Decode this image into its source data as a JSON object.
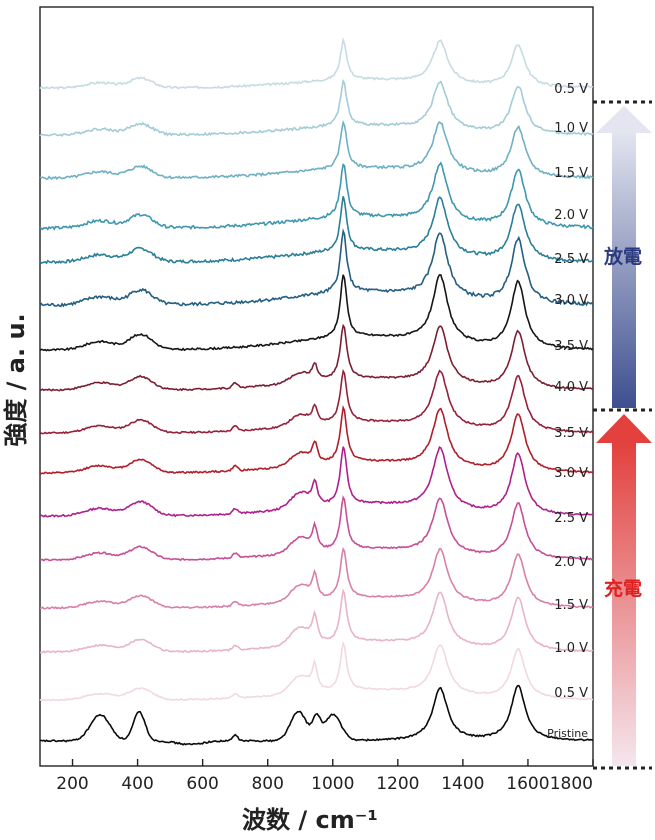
{
  "chart_data": {
    "type": "line",
    "xlabel": "波数 / cm⁻¹",
    "ylabel": "強度 / a. u.",
    "xlim": [
      100,
      1800
    ],
    "xticks": [
      200,
      400,
      600,
      800,
      1000,
      1200,
      1400,
      1600,
      1800
    ],
    "grid": false,
    "offset_stacked": true,
    "peaks_cm-1": [
      1030,
      1330,
      1570
    ],
    "series": [
      {
        "name": "0.5 V",
        "color": "#c6dce2"
      },
      {
        "name": "1.0 V",
        "color": "#a4ccd6"
      },
      {
        "name": "1.5 V",
        "color": "#6fb0c2"
      },
      {
        "name": "2.0 V",
        "color": "#3f97ae"
      },
      {
        "name": "2.5 V",
        "color": "#2a7f98"
      },
      {
        "name": "3.0 V",
        "color": "#245e82"
      },
      {
        "name": "3.5 V",
        "color": "#151515"
      },
      {
        "name": "4.0 V",
        "color": "#7a1f33"
      },
      {
        "name": "3.5 V",
        "color": "#96203a"
      },
      {
        "name": "3.0 V",
        "color": "#b01e2a"
      },
      {
        "name": "2.5 V",
        "color": "#b0208a"
      },
      {
        "name": "2.0 V",
        "color": "#c65096"
      },
      {
        "name": "1.5 V",
        "color": "#d880a8"
      },
      {
        "name": "1.0 V",
        "color": "#e8b4ca"
      },
      {
        "name": "0.5 V",
        "color": "#f2d8e4"
      },
      {
        "name": "Pristine",
        "color": "#0a0a0a"
      }
    ],
    "annotations": {
      "discharge": {
        "label": "放電",
        "color": "#2b3a80"
      },
      "charge": {
        "label": "充電",
        "color": "#e02020"
      }
    }
  }
}
